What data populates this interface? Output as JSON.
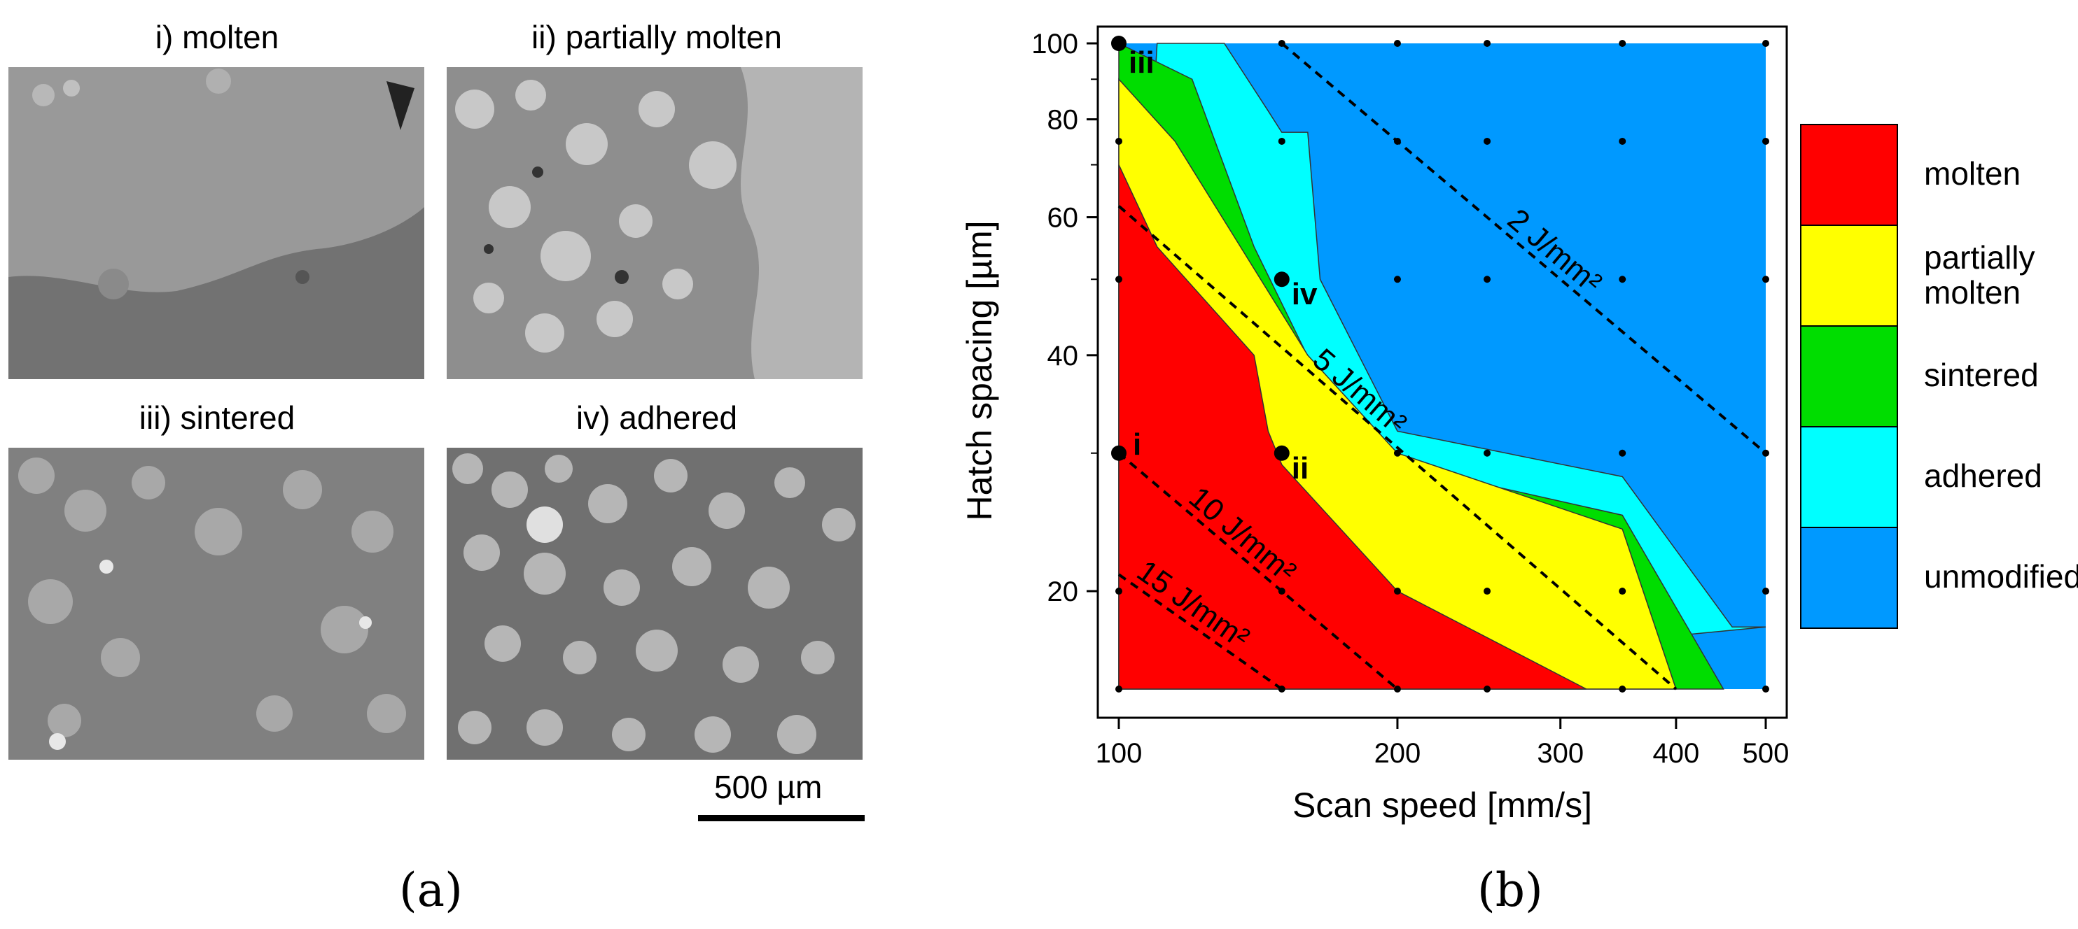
{
  "panel_a": {
    "images": [
      {
        "title": "i) molten",
        "tone": "#8e8e8e"
      },
      {
        "title": "ii) partially molten",
        "tone": "#9a9a9a"
      },
      {
        "title": "iii) sintered",
        "tone": "#8a8a8a"
      },
      {
        "title": "iv) adhered",
        "tone": "#939393"
      }
    ],
    "scale_bar_label": "500 µm",
    "caption": "(a)"
  },
  "panel_b": {
    "caption": "(b)"
  },
  "chart_data": {
    "type": "contour-map",
    "xlabel": "Scan speed [mm/s]",
    "ylabel": "Hatch spacing [µm]",
    "x_scale": "log",
    "y_scale": "log",
    "xlim": [
      100,
      500
    ],
    "ylim": [
      15,
      100
    ],
    "x_ticks": [
      100,
      200,
      300,
      400,
      500
    ],
    "y_ticks": [
      20,
      40,
      60,
      80,
      100
    ],
    "legend_position": "right",
    "regions": [
      {
        "name": "molten",
        "color": "#ff0000",
        "boundary": [
          [
            100,
            70
          ],
          [
            110,
            55
          ],
          [
            140,
            40
          ],
          [
            145,
            32
          ],
          [
            150,
            29
          ],
          [
            200,
            20
          ],
          [
            320,
            15
          ]
        ]
      },
      {
        "name": "partially molten",
        "color": "#ffff00",
        "boundary": [
          [
            100,
            90
          ],
          [
            115,
            75
          ],
          [
            160,
            40
          ],
          [
            200,
            30
          ],
          [
            350,
            24
          ],
          [
            400,
            15
          ]
        ]
      },
      {
        "name": "sintered",
        "color": "#00dd00",
        "boundary": [
          [
            100,
            100
          ],
          [
            120,
            90
          ],
          [
            140,
            55
          ],
          [
            165,
            37
          ],
          [
            200,
            29
          ],
          [
            350,
            25
          ],
          [
            450,
            15
          ]
        ]
      },
      {
        "name": "adhered",
        "color": "#00ffff",
        "boundary": [
          [
            110,
            100
          ],
          [
            130,
            100
          ],
          [
            145,
            82
          ],
          [
            150,
            77
          ],
          [
            160,
            77
          ],
          [
            165,
            50
          ],
          [
            200,
            32
          ],
          [
            350,
            28
          ],
          [
            460,
            18
          ],
          [
            500,
            18
          ]
        ]
      },
      {
        "name": "unmodified",
        "color": "#0099ff",
        "boundary": []
      }
    ],
    "legend": [
      {
        "label": "molten",
        "color": "#ff0000"
      },
      {
        "label": "partially\nmolten",
        "color": "#ffff00"
      },
      {
        "label": "sintered",
        "color": "#00dd00"
      },
      {
        "label": "adhered",
        "color": "#00ffff"
      },
      {
        "label": "unmodified",
        "color": "#0099ff"
      }
    ],
    "iso_energy_lines": [
      {
        "label": "2 J/mm²",
        "points": [
          [
            150,
            100
          ],
          [
            500,
            30
          ]
        ]
      },
      {
        "label": "5 J/mm²",
        "points": [
          [
            100,
            62
          ],
          [
            400,
            15
          ]
        ]
      },
      {
        "label": "10 J/mm²",
        "points": [
          [
            100,
            30
          ],
          [
            200,
            15
          ]
        ]
      },
      {
        "label": "15 J/mm²",
        "points": [
          [
            100,
            21
          ],
          [
            150,
            15
          ]
        ]
      }
    ],
    "grid_points": {
      "x": [
        100,
        150,
        200,
        250,
        350,
        500
      ],
      "y": [
        15,
        20,
        30,
        50,
        75,
        100
      ]
    },
    "marked_points": [
      {
        "label": "i",
        "x": 100,
        "y": 30
      },
      {
        "label": "ii",
        "x": 150,
        "y": 30
      },
      {
        "label": "iii",
        "x": 100,
        "y": 100
      },
      {
        "label": "iv",
        "x": 150,
        "y": 50
      }
    ]
  }
}
